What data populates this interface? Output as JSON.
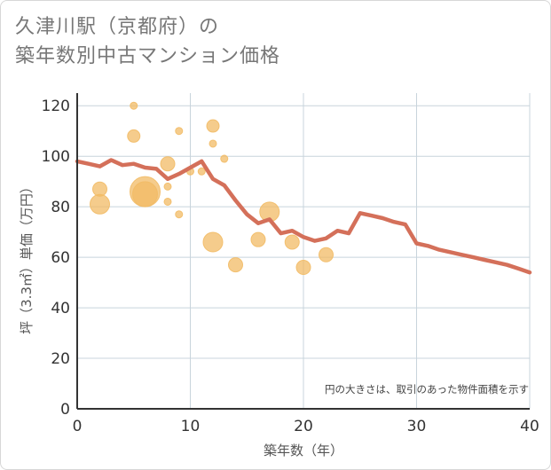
{
  "title_line1": "久津川駅（京都府）の",
  "title_line2": "築年数別中古マンション価格",
  "chart_data": {
    "type": "scatter",
    "xlabel": "築年数（年）",
    "ylabel": "坪（3.3㎡）単価（万円）",
    "xlim": [
      0,
      40
    ],
    "ylim": [
      0,
      125
    ],
    "xticks": [
      "0",
      "10",
      "20",
      "30",
      "40"
    ],
    "yticks": [
      "0",
      "20",
      "40",
      "60",
      "80",
      "100",
      "120"
    ],
    "grid": true,
    "annotation": "円の大きさは、取引のあった物件面積を示す",
    "colors": {
      "bubble": "#f2bb66",
      "line": "#d4705a",
      "axis": "#333333",
      "grid": "#c8d4dc"
    },
    "bubbles": [
      {
        "x": 5,
        "y": 120,
        "size": 4
      },
      {
        "x": 5,
        "y": 108,
        "size": 7
      },
      {
        "x": 9,
        "y": 110,
        "size": 4
      },
      {
        "x": 12,
        "y": 112,
        "size": 7
      },
      {
        "x": 12,
        "y": 105,
        "size": 4
      },
      {
        "x": 13,
        "y": 99,
        "size": 4
      },
      {
        "x": 8,
        "y": 97,
        "size": 8
      },
      {
        "x": 10,
        "y": 94,
        "size": 4
      },
      {
        "x": 11,
        "y": 94,
        "size": 4
      },
      {
        "x": 2,
        "y": 87,
        "size": 8
      },
      {
        "x": 2,
        "y": 81,
        "size": 11
      },
      {
        "x": 6,
        "y": 86,
        "size": 17
      },
      {
        "x": 6,
        "y": 85,
        "size": 14
      },
      {
        "x": 8,
        "y": 88,
        "size": 4
      },
      {
        "x": 8,
        "y": 82,
        "size": 4
      },
      {
        "x": 9,
        "y": 77,
        "size": 4
      },
      {
        "x": 17,
        "y": 78,
        "size": 11
      },
      {
        "x": 12,
        "y": 66,
        "size": 11
      },
      {
        "x": 16,
        "y": 67,
        "size": 8
      },
      {
        "x": 19,
        "y": 66,
        "size": 8
      },
      {
        "x": 22,
        "y": 61,
        "size": 8
      },
      {
        "x": 14,
        "y": 57,
        "size": 8
      },
      {
        "x": 20,
        "y": 56,
        "size": 8
      }
    ],
    "trend": {
      "x": [
        0,
        1,
        2,
        3,
        4,
        5,
        6,
        7,
        8,
        9,
        10,
        11,
        12,
        13,
        14,
        15,
        16,
        17,
        18,
        19,
        20,
        21,
        22,
        23,
        24,
        25,
        26,
        27,
        28,
        29,
        30,
        31,
        32,
        33,
        34,
        35,
        36,
        37,
        38,
        39,
        40
      ],
      "y": [
        98,
        97,
        96,
        98.5,
        96.5,
        97,
        95.5,
        95,
        91,
        93,
        95.5,
        98,
        91,
        88.5,
        82.5,
        77,
        73.5,
        75,
        69.5,
        70.5,
        68,
        66.5,
        67.5,
        70.5,
        69.5,
        77.5,
        76.5,
        75.5,
        74,
        73,
        65.5,
        64.5,
        63,
        62,
        61,
        60,
        59,
        58,
        57,
        55.5,
        54
      ]
    }
  }
}
